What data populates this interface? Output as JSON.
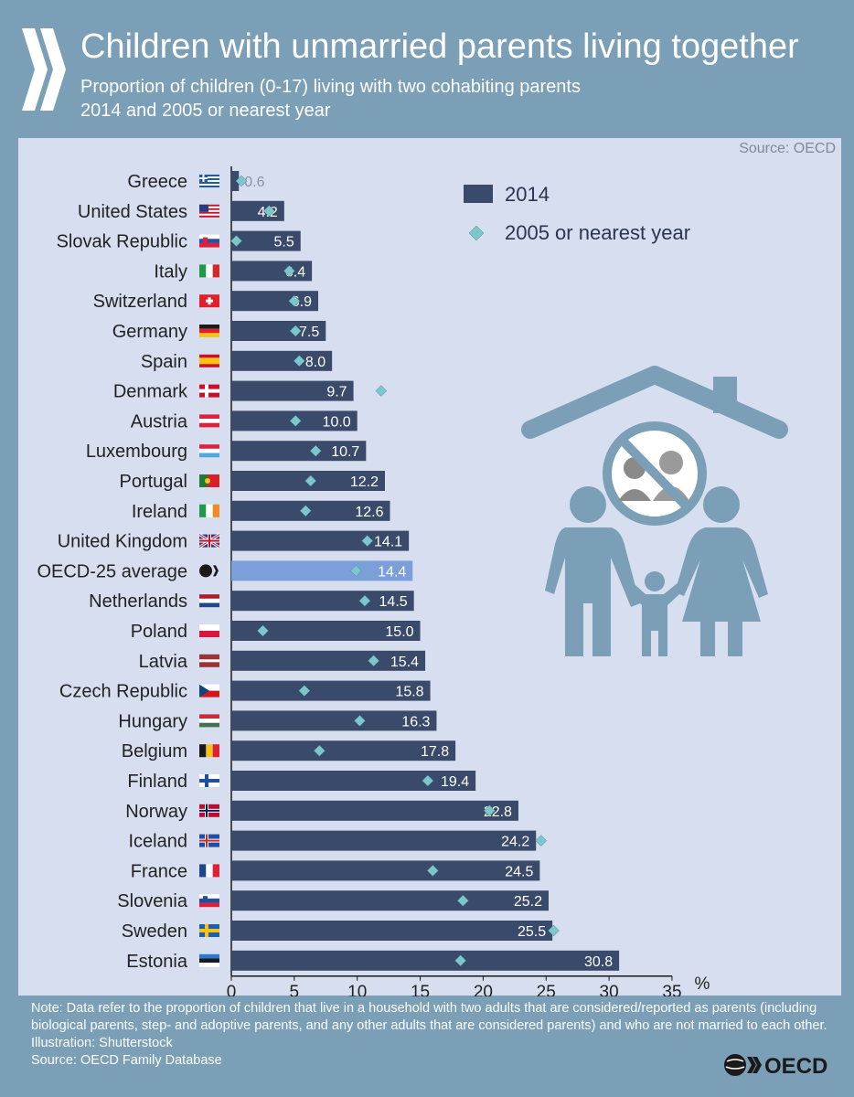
{
  "header": {
    "title": "Children with unmarried parents living together",
    "subtitle_line1": "Proportion of children (0-17) living with two cohabiting parents",
    "subtitle_line2": "2014 and 2005 or nearest year"
  },
  "source_top": "Source: OECD",
  "note": {
    "line1": "Note: Data refer to the proportion of children that live in a household with two adults that are considered/reported as parents (including",
    "line2": "biological parents, step- and adoptive parents, and any other adults that are considered parents) and who are not married to each other.",
    "line3": "Illustration: Shutterstock",
    "line4": "Source: OECD Family Database"
  },
  "logo_text": "OECD",
  "colors": {
    "bar": "#3a4a6b",
    "highlight_bar": "#7b9fd8",
    "diamond": "#7cc6cc",
    "panel": "#d6deef",
    "frame": "#7a9fb6",
    "illustration": "#7a9fb6"
  },
  "chart_data": {
    "type": "bar",
    "orientation": "horizontal",
    "categories": [
      "Greece",
      "United States",
      "Slovak Republic",
      "Italy",
      "Switzerland",
      "Germany",
      "Spain",
      "Denmark",
      "Austria",
      "Luxembourg",
      "Portugal",
      "Ireland",
      "United Kingdom",
      "OECD-25 average",
      "Netherlands",
      "Poland",
      "Latvia",
      "Czech Republic",
      "Hungary",
      "Belgium",
      "Finland",
      "Norway",
      "Iceland",
      "France",
      "Slovenia",
      "Sweden",
      "Estonia"
    ],
    "series": [
      {
        "name": "2014",
        "type": "bar",
        "values": [
          0.6,
          4.2,
          5.5,
          6.4,
          6.9,
          7.5,
          8.0,
          9.7,
          10.0,
          10.7,
          12.2,
          12.6,
          14.1,
          14.4,
          14.5,
          15.0,
          15.4,
          15.8,
          16.3,
          17.8,
          19.4,
          22.8,
          24.2,
          24.5,
          25.2,
          25.5,
          30.8
        ]
      },
      {
        "name": "2005 or nearest year",
        "type": "marker",
        "values": [
          0.8,
          3.0,
          0.4,
          4.6,
          5.0,
          5.1,
          5.4,
          11.9,
          5.1,
          6.7,
          6.3,
          5.9,
          10.8,
          9.9,
          10.6,
          2.5,
          11.3,
          5.8,
          10.2,
          7.0,
          15.6,
          20.5,
          24.6,
          16.0,
          18.4,
          25.6,
          18.2
        ]
      }
    ],
    "highlight": "OECD-25 average",
    "x_ticks": [
      0,
      5,
      10,
      15,
      20,
      25,
      30,
      35
    ],
    "xlim": [
      0,
      35
    ],
    "xlabel": "%",
    "grid": false,
    "legend_position": "top-right"
  }
}
